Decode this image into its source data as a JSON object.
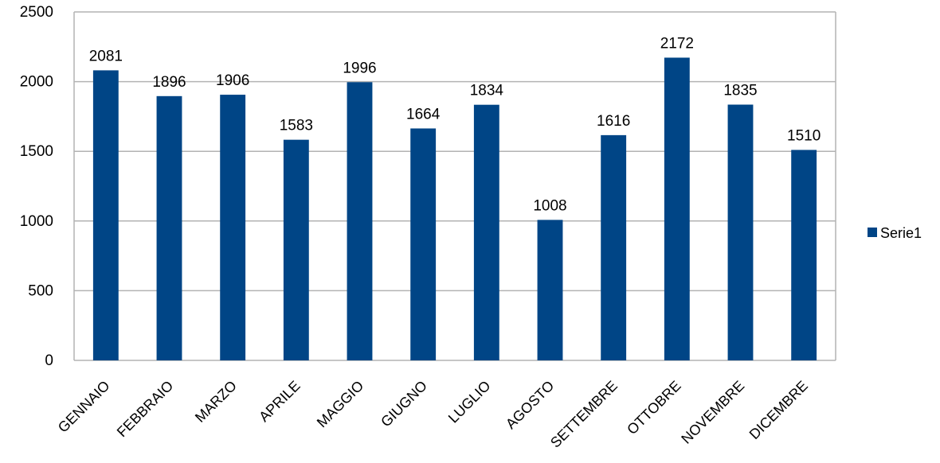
{
  "chart_data": {
    "type": "bar",
    "title": "",
    "xlabel": "",
    "ylabel": "",
    "categories": [
      "GENNAIO",
      "FEBBRAIO",
      "MARZO",
      "APRILE",
      "MAGGIO",
      "GIUGNO",
      "LUGLIO",
      "AGOSTO",
      "SETTEMBRE",
      "OTTOBRE",
      "NOVEMBRE",
      "DICEMBRE"
    ],
    "series": [
      {
        "name": "Serie1",
        "values": [
          2081,
          1896,
          1906,
          1583,
          1996,
          1664,
          1834,
          1008,
          1616,
          2172,
          1835,
          1510
        ],
        "color": "#004586"
      }
    ],
    "ylim": [
      0,
      2500
    ],
    "yticks": [
      0,
      500,
      1000,
      1500,
      2000,
      2500
    ],
    "grid": true,
    "gridColor": "#b3b3b3",
    "legend": "right",
    "dataLabels": true,
    "xLabelRotation": -45
  }
}
